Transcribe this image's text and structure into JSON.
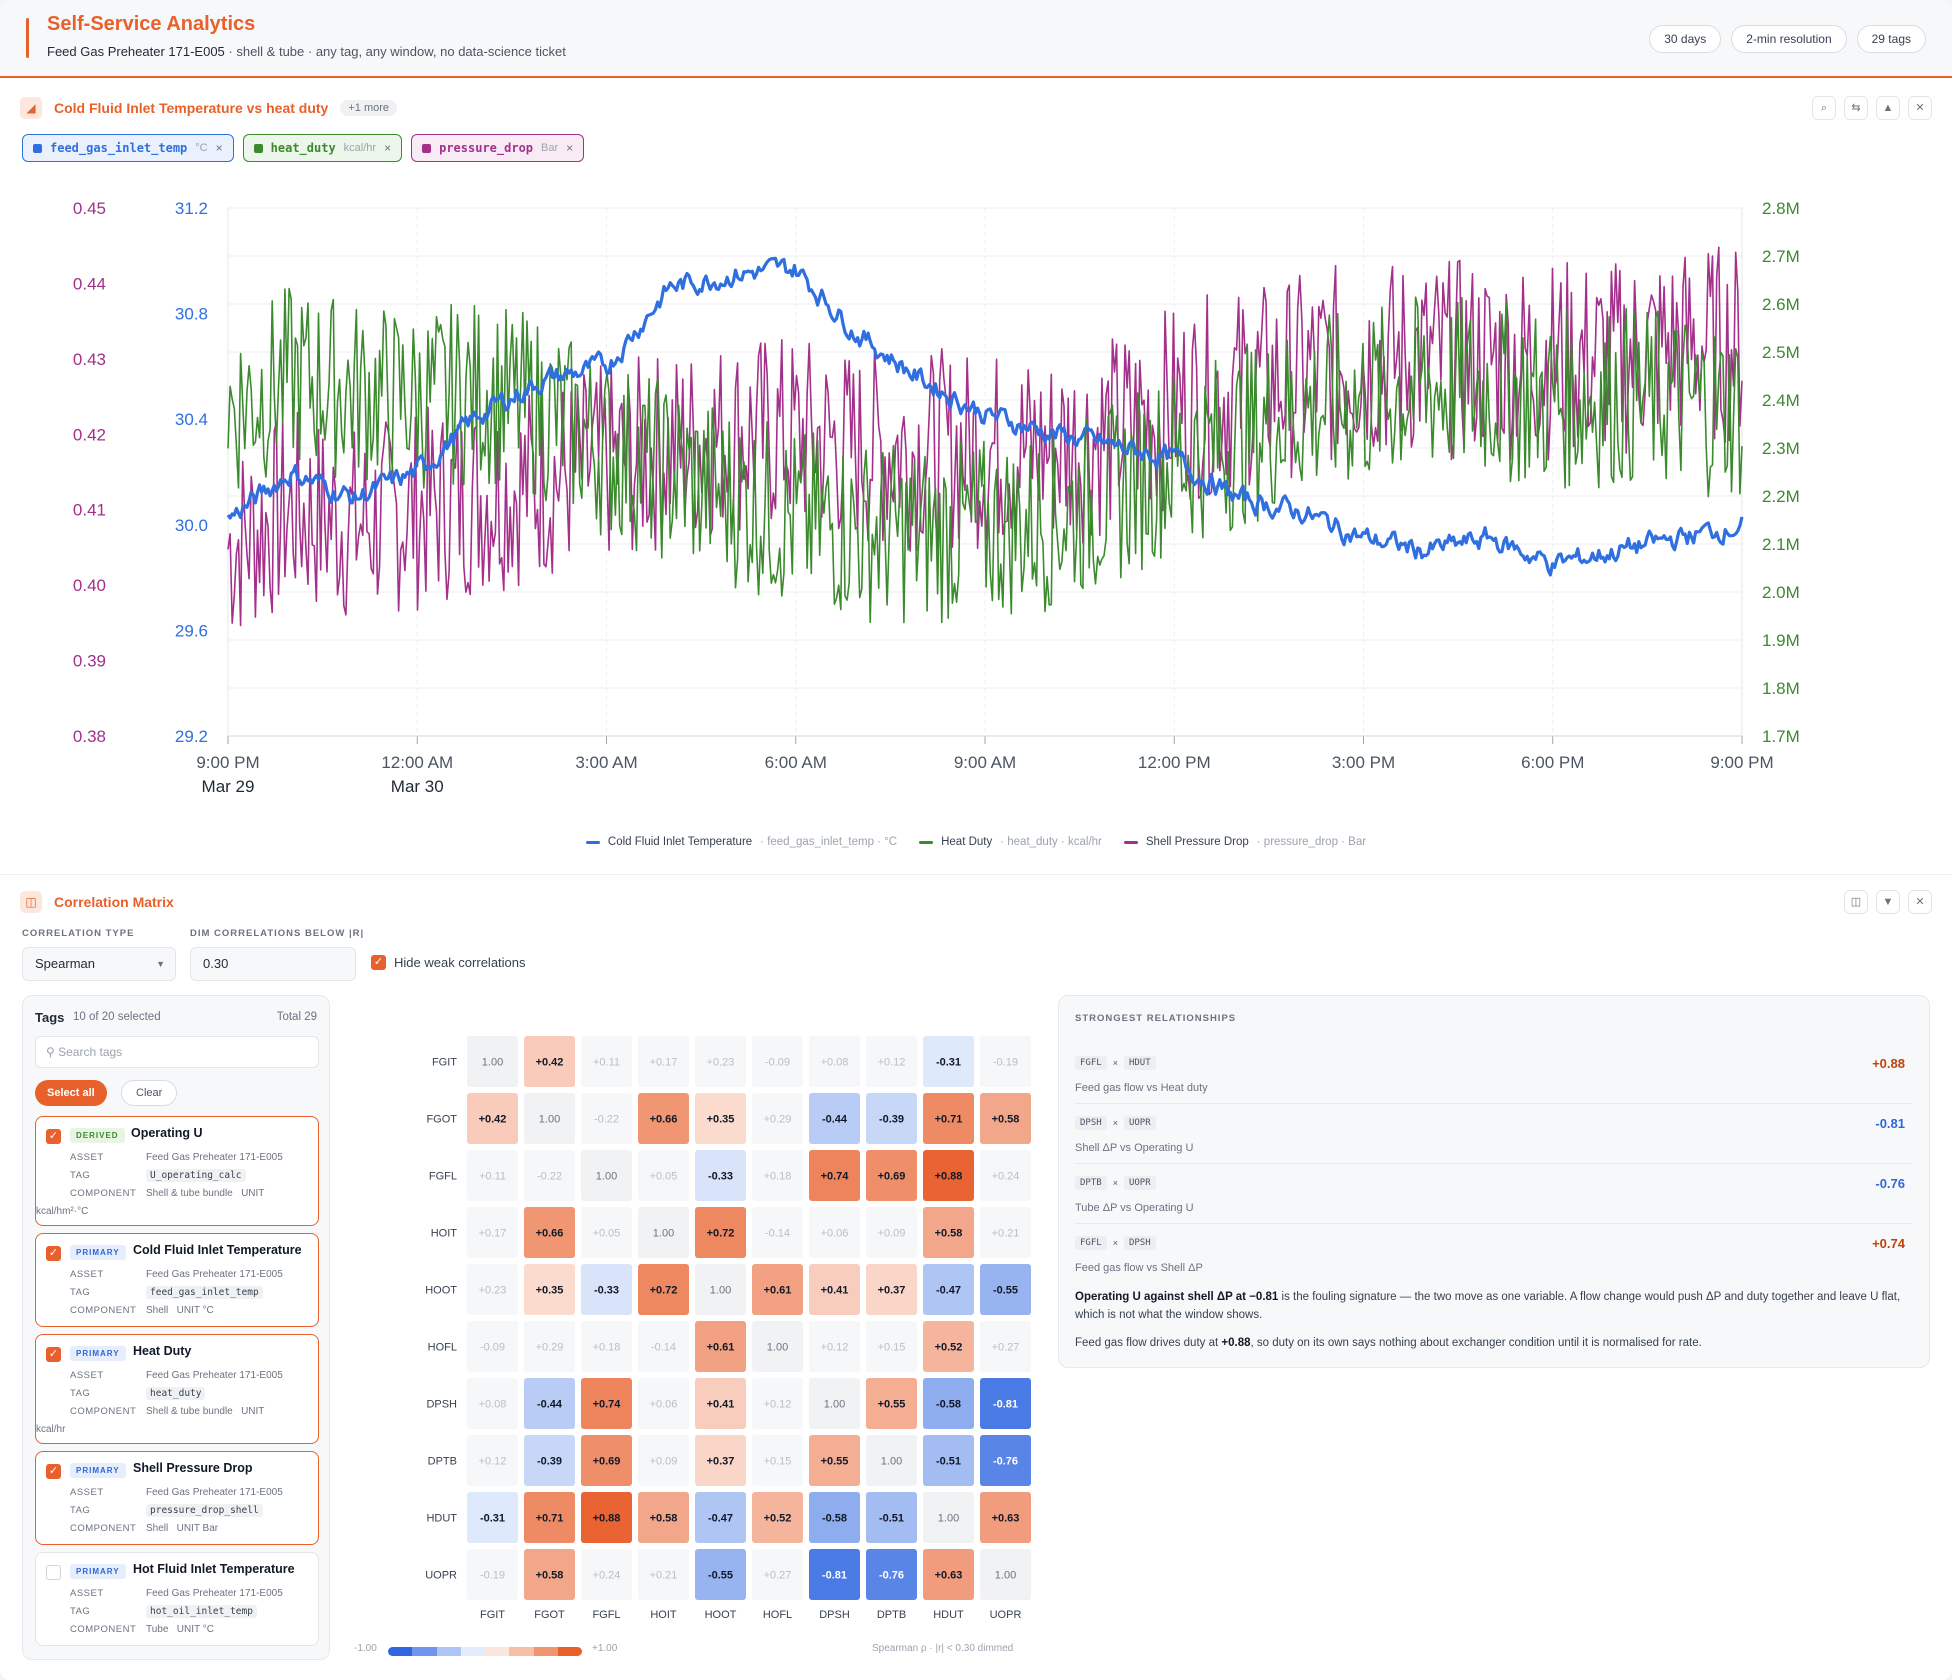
{
  "header": {
    "title": "Self-Service Analytics",
    "subtitle_bold": "Feed Gas Preheater 171-E005",
    "subtitle_rest": " · shell & tube · any tag, any window, no data-science ticket",
    "pills": [
      "30 days",
      "2-min resolution",
      "29 tags"
    ]
  },
  "chart_panel": {
    "title": "Cold Fluid Inlet Temperature vs heat duty",
    "more": "+1 more",
    "chips": [
      {
        "name": "feed_gas_inlet_temp",
        "unit": "°C",
        "x": "×",
        "color": "#2f6fe0",
        "bg": "#eaf1fd"
      },
      {
        "name": "heat_duty",
        "unit": "kcal/hr",
        "x": "×",
        "color": "#3b8a2e",
        "bg": "#edf6ea"
      },
      {
        "name": "pressure_drop",
        "unit": "Bar",
        "x": "×",
        "color": "#a3308a",
        "bg": "#f8ebf5"
      }
    ],
    "legend": [
      {
        "label": "Cold Fluid Inlet Temperature",
        "meta": "· feed_gas_inlet_temp · °C",
        "color": "#2f6fe0"
      },
      {
        "label": "Heat Duty",
        "meta": "· heat_duty · kcal/hr",
        "color": "#3b8a2e"
      },
      {
        "label": "Shell Pressure Drop",
        "meta": "· pressure_drop · Bar",
        "color": "#a3308a"
      }
    ]
  },
  "chart_data": {
    "type": "line",
    "x_ticks": [
      {
        "label": "9:00 PM",
        "sub": "Mar 29"
      },
      {
        "label": "12:00 AM",
        "sub": "Mar 30"
      },
      {
        "label": "3:00 AM",
        "sub": ""
      },
      {
        "label": "6:00 AM",
        "sub": ""
      },
      {
        "label": "9:00 AM",
        "sub": ""
      },
      {
        "label": "12:00 PM",
        "sub": ""
      },
      {
        "label": "3:00 PM",
        "sub": ""
      },
      {
        "label": "6:00 PM",
        "sub": ""
      },
      {
        "label": "9:00 PM",
        "sub": ""
      }
    ],
    "y_axes": {
      "pressure_drop": {
        "ticks": [
          "0.45",
          "0.44",
          "0.43",
          "0.42",
          "0.41",
          "0.40",
          "0.39",
          "0.38"
        ],
        "range": [
          0.38,
          0.45
        ],
        "color": "#a3308a"
      },
      "feed_gas_inlet_temp": {
        "ticks": [
          "31.2",
          "30.8",
          "30.4",
          "30.0",
          "29.6",
          "29.2"
        ],
        "range": [
          29.2,
          31.2
        ],
        "color": "#2f6fe0"
      },
      "heat_duty": {
        "ticks": [
          "2.8M",
          "2.7M",
          "2.6M",
          "2.5M",
          "2.4M",
          "2.3M",
          "2.2M",
          "2.1M",
          "2.0M",
          "1.9M",
          "1.8M",
          "1.7M"
        ],
        "range": [
          1700000,
          2800000
        ],
        "color": "#3b8a2e"
      }
    },
    "series": [
      {
        "name": "Cold Fluid Inlet Temperature",
        "axis": "feed_gas_inlet_temp",
        "color": "#2f6fe0",
        "anchors": [
          30.02,
          30.2,
          30.1,
          30.2,
          30.42,
          30.55,
          30.6,
          30.9,
          30.95,
          30.97,
          30.72,
          30.55,
          30.42,
          30.35,
          30.3,
          30.25,
          30.1,
          30.05,
          29.95,
          29.9,
          29.95,
          29.85,
          29.9,
          29.95,
          30.0
        ]
      },
      {
        "name": "Heat Duty",
        "axis": "heat_duty",
        "color": "#3b8a2e",
        "anchors": [
          2380000,
          2450000,
          2420000,
          2400000,
          2420000,
          2380000,
          2300000,
          2250000,
          2200000,
          2150000,
          2130000,
          2120000,
          2130000,
          2150000,
          2200000,
          2280000,
          2320000,
          2380000,
          2400000,
          2430000,
          2420000,
          2400000,
          2410000,
          2400000,
          2380000
        ]
      },
      {
        "name": "Shell Pressure Drop",
        "axis": "pressure_drop",
        "color": "#a3308a",
        "anchors": [
          0.405,
          0.41,
          0.408,
          0.41,
          0.412,
          0.414,
          0.416,
          0.418,
          0.42,
          0.42,
          0.418,
          0.418,
          0.418,
          0.418,
          0.42,
          0.424,
          0.426,
          0.428,
          0.43,
          0.43,
          0.43,
          0.43,
          0.43,
          0.432,
          0.432
        ]
      }
    ]
  },
  "matrix_panel": {
    "title": "Correlation Matrix",
    "corr_type_label": "CORRELATION TYPE",
    "corr_type_value": "Spearman",
    "dim_label": "DIM CORRELATIONS BELOW |R|",
    "dim_value": "0.30",
    "hide_weak_label": "Hide weak correlations",
    "tags": {
      "title": "Tags",
      "selected": "10 of 20 selected",
      "total": "Total 29",
      "search_placeholder": "⚲ Search tags",
      "select_all": "Select all",
      "clear": "Clear",
      "cards": [
        {
          "badge": "DERIVED",
          "name": "Operating U",
          "asset": "Feed Gas Preheater 171-E005",
          "tag": "U_operating_calc",
          "component": "Shell & tube bundle",
          "unit": "kcal/hm²·°C",
          "checked": true
        },
        {
          "badge": "PRIMARY",
          "name": "Cold Fluid Inlet Temperature",
          "asset": "Feed Gas Preheater 171-E005",
          "tag": "feed_gas_inlet_temp",
          "component": "Shell",
          "unit": "°C",
          "checked": true
        },
        {
          "badge": "PRIMARY",
          "name": "Heat Duty",
          "asset": "Feed Gas Preheater 171-E005",
          "tag": "heat_duty",
          "component": "Shell & tube bundle",
          "unit": "kcal/hr",
          "checked": true
        },
        {
          "badge": "PRIMARY",
          "name": "Shell Pressure Drop",
          "asset": "Feed Gas Preheater 171-E005",
          "tag": "pressure_drop_shell",
          "component": "Shell",
          "unit": "Bar",
          "checked": true
        },
        {
          "badge": "PRIMARY",
          "name": "Hot Fluid Inlet Temperature",
          "asset": "Feed Gas Preheater 171-E005",
          "tag": "hot_oil_inlet_temp",
          "component": "Tube",
          "unit": "°C",
          "checked": false
        }
      ],
      "labels": {
        "asset": "ASSET",
        "tag": "TAG",
        "component": "COMPONENT",
        "unit": "UNIT"
      }
    },
    "matrix": {
      "labels": [
        "FGIT",
        "FGOT",
        "FGFL",
        "HOIT",
        "HOOT",
        "HOFL",
        "DPSH",
        "DPTB",
        "HDUT",
        "UOPR"
      ],
      "values": [
        [
          1.0,
          0.42,
          0.11,
          0.17,
          0.23,
          -0.09,
          0.08,
          0.12,
          -0.31,
          -0.19
        ],
        [
          0.42,
          1.0,
          -0.22,
          0.66,
          0.35,
          0.29,
          -0.44,
          -0.39,
          0.71,
          0.58
        ],
        [
          0.11,
          -0.22,
          1.0,
          0.05,
          -0.33,
          0.18,
          0.74,
          0.69,
          0.88,
          0.24
        ],
        [
          0.17,
          0.66,
          0.05,
          1.0,
          0.72,
          -0.14,
          0.06,
          0.09,
          0.58,
          0.21
        ],
        [
          0.23,
          0.35,
          -0.33,
          0.72,
          1.0,
          0.61,
          0.41,
          0.37,
          -0.47,
          -0.55
        ],
        [
          -0.09,
          0.29,
          0.18,
          -0.14,
          0.61,
          1.0,
          0.12,
          0.15,
          0.52,
          0.27
        ],
        [
          0.08,
          -0.44,
          0.74,
          0.06,
          0.41,
          0.12,
          1.0,
          0.55,
          -0.58,
          -0.81
        ],
        [
          0.12,
          -0.39,
          0.69,
          0.09,
          0.37,
          0.15,
          0.55,
          1.0,
          -0.51,
          -0.76
        ],
        [
          -0.31,
          0.71,
          0.88,
          0.58,
          -0.47,
          0.52,
          -0.58,
          -0.51,
          1.0,
          0.63
        ],
        [
          -0.19,
          0.58,
          0.24,
          0.21,
          -0.55,
          0.27,
          -0.81,
          -0.76,
          0.63,
          1.0
        ]
      ],
      "threshold": 0.3,
      "scale_min": "-1.00",
      "scale_max": "+1.00",
      "scale_note": "Spearman ρ · |r| < 0.30 dimmed"
    },
    "relationships": {
      "title": "STRONGEST RELATIONSHIPS",
      "items": [
        {
          "a": "FGFL",
          "b": "HDUT",
          "desc": "Feed gas flow vs Heat duty",
          "value": "+0.88",
          "color": "#c2410c"
        },
        {
          "a": "DPSH",
          "b": "UOPR",
          "desc": "Shell ΔP vs Operating U",
          "value": "-0.81",
          "color": "#2f66d9"
        },
        {
          "a": "DPTB",
          "b": "UOPR",
          "desc": "Tube ΔP vs Operating U",
          "value": "-0.76",
          "color": "#2f66d9"
        },
        {
          "a": "FGFL",
          "b": "DPSH",
          "desc": "Feed gas flow vs Shell ΔP",
          "value": "+0.74",
          "color": "#c2410c"
        }
      ],
      "note1_bold": "Operating U against shell ΔP at −0.81",
      "note1_rest": " is the fouling signature — the two move as one variable. A flow change would push ΔP and duty together and leave U flat, which is not what the window shows.",
      "note2_a": "Feed gas flow drives duty at ",
      "note2_bold": "+0.88",
      "note2_b": ", so duty on its own says nothing about exchanger condition until it is normalised for rate."
    }
  }
}
